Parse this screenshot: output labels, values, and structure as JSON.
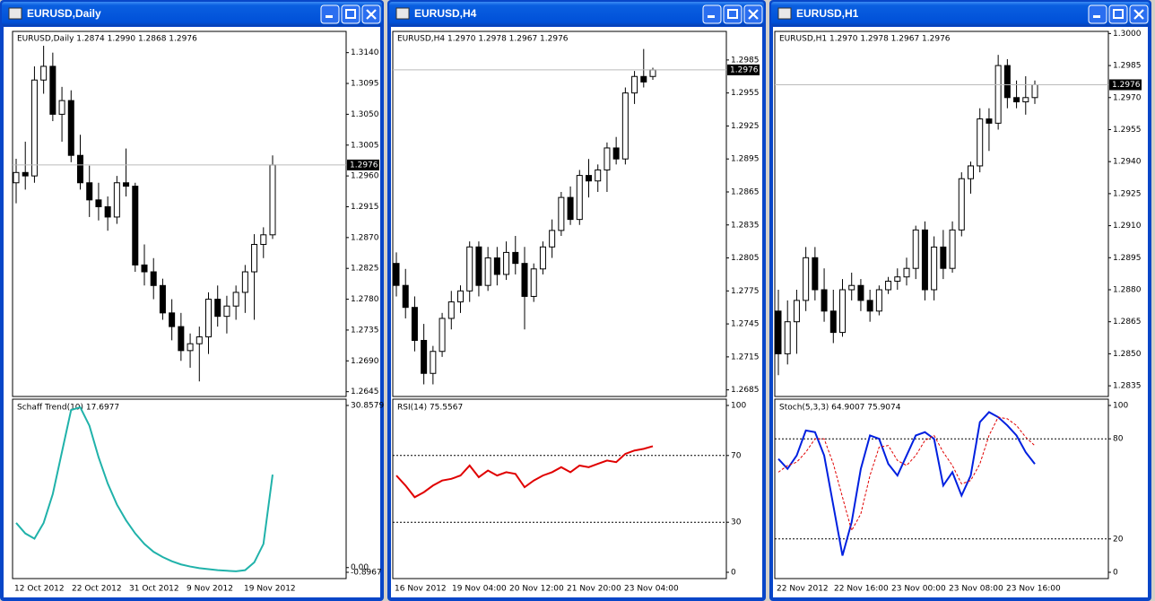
{
  "chart_data": [
    {
      "type": "candlestick",
      "title": "EURUSD,Daily",
      "header": "EURUSD,Daily  1.2874 1.2990 1.2868 1.2976",
      "candles": [
        [
          1.295,
          1.2985,
          1.292,
          1.2965
        ],
        [
          1.2965,
          1.301,
          1.294,
          1.296
        ],
        [
          1.296,
          1.312,
          1.295,
          1.31
        ],
        [
          1.31,
          1.315,
          1.308,
          1.312
        ],
        [
          1.312,
          1.314,
          1.304,
          1.305
        ],
        [
          1.305,
          1.309,
          1.301,
          1.307
        ],
        [
          1.307,
          1.3085,
          1.298,
          1.299
        ],
        [
          1.299,
          1.302,
          1.294,
          1.295
        ],
        [
          1.295,
          1.2975,
          1.29,
          1.2925
        ],
        [
          1.2925,
          1.295,
          1.2895,
          1.2915
        ],
        [
          1.2915,
          1.293,
          1.288,
          1.29
        ],
        [
          1.29,
          1.296,
          1.289,
          1.295
        ],
        [
          1.295,
          1.3,
          1.293,
          1.2945
        ],
        [
          1.2945,
          1.295,
          1.282,
          1.283
        ],
        [
          1.283,
          1.286,
          1.28,
          1.282
        ],
        [
          1.282,
          1.284,
          1.278,
          1.28
        ],
        [
          1.28,
          1.281,
          1.275,
          1.276
        ],
        [
          1.276,
          1.278,
          1.272,
          1.274
        ],
        [
          1.274,
          1.276,
          1.269,
          1.2705
        ],
        [
          1.2705,
          1.273,
          1.268,
          1.2715
        ],
        [
          1.2715,
          1.274,
          1.266,
          1.2725
        ],
        [
          1.2725,
          1.279,
          1.27,
          1.278
        ],
        [
          1.278,
          1.28,
          1.274,
          1.2755
        ],
        [
          1.2755,
          1.2785,
          1.273,
          1.277
        ],
        [
          1.277,
          1.28,
          1.275,
          1.279
        ],
        [
          1.279,
          1.283,
          1.276,
          1.282
        ],
        [
          1.282,
          1.2875,
          1.275,
          1.286
        ],
        [
          1.286,
          1.2885,
          1.284,
          1.2874
        ],
        [
          1.2874,
          1.299,
          1.2868,
          1.2976
        ]
      ],
      "ylim": [
        1.2638,
        1.3171
      ],
      "yticks": [
        {
          "value": 1.314,
          "label": "1.3140"
        },
        {
          "value": 1.3095,
          "label": "1.3095"
        },
        {
          "value": 1.305,
          "label": "1.3050"
        },
        {
          "value": 1.3005,
          "label": "1.3005"
        },
        {
          "value": 1.296,
          "label": "1.2960"
        },
        {
          "value": 1.2915,
          "label": "1.2915"
        },
        {
          "value": 1.287,
          "label": "1.2870"
        },
        {
          "value": 1.2825,
          "label": "1.2825"
        },
        {
          "value": 1.278,
          "label": "1.2780"
        },
        {
          "value": 1.2735,
          "label": "1.2735"
        },
        {
          "value": 1.269,
          "label": "1.2690"
        },
        {
          "value": 1.2645,
          "label": "1.2645"
        }
      ],
      "current": {
        "value": 1.2976,
        "label": "1.2976"
      },
      "x_labels": [
        "12 Oct 2012",
        "22 Oct 2012",
        "31 Oct 2012",
        "9 Nov 2012",
        "19 Nov 2012"
      ],
      "indicator": {
        "type": "line",
        "label": "Schaff Trend(10) 17.6977",
        "ylim": [
          -0.8967,
          30.8579
        ],
        "yticks": [
          {
            "value": 30.8579,
            "label": "30.8579"
          },
          {
            "value": 0,
            "label": "0.00"
          },
          {
            "value": -0.8967,
            "label": "-0.8967"
          }
        ],
        "levels": [],
        "series": [
          {
            "color": "#20b2aa",
            "style": "solid",
            "values": [
              8.5,
              6.5,
              5.5,
              8.5,
              14,
              22,
              30,
              30.5,
              27,
              21,
              16,
              12,
              9,
              6.5,
              4.5,
              3,
              2,
              1.2,
              0.6,
              0.2,
              -0.1,
              -0.3,
              -0.5,
              -0.6,
              -0.7,
              -0.5,
              1,
              4.5,
              17.6977
            ]
          }
        ]
      }
    },
    {
      "type": "candlestick",
      "title": "EURUSD,H4",
      "header": "EURUSD,H4  1.2970 1.2978 1.2967 1.2976",
      "candles": [
        [
          1.28,
          1.281,
          1.277,
          1.278
        ],
        [
          1.278,
          1.2795,
          1.275,
          1.276
        ],
        [
          1.276,
          1.277,
          1.272,
          1.273
        ],
        [
          1.273,
          1.2745,
          1.269,
          1.27
        ],
        [
          1.27,
          1.2725,
          1.269,
          1.272
        ],
        [
          1.272,
          1.2755,
          1.2715,
          1.275
        ],
        [
          1.275,
          1.2775,
          1.274,
          1.2765
        ],
        [
          1.2765,
          1.278,
          1.2755,
          1.2775
        ],
        [
          1.2775,
          1.282,
          1.2765,
          1.2815
        ],
        [
          1.2815,
          1.282,
          1.277,
          1.278
        ],
        [
          1.278,
          1.2815,
          1.2775,
          1.2805
        ],
        [
          1.2805,
          1.2815,
          1.278,
          1.279
        ],
        [
          1.279,
          1.282,
          1.2785,
          1.281
        ],
        [
          1.281,
          1.2825,
          1.279,
          1.28
        ],
        [
          1.28,
          1.2815,
          1.274,
          1.277
        ],
        [
          1.277,
          1.28,
          1.2765,
          1.2795
        ],
        [
          1.2795,
          1.282,
          1.279,
          1.2815
        ],
        [
          1.2815,
          1.284,
          1.2805,
          1.283
        ],
        [
          1.283,
          1.2865,
          1.2825,
          1.286
        ],
        [
          1.286,
          1.287,
          1.2835,
          1.284
        ],
        [
          1.284,
          1.2885,
          1.2835,
          1.288
        ],
        [
          1.288,
          1.2895,
          1.286,
          1.2875
        ],
        [
          1.2875,
          1.289,
          1.2865,
          1.2885
        ],
        [
          1.2885,
          1.291,
          1.2865,
          1.2905
        ],
        [
          1.2905,
          1.2915,
          1.289,
          1.2895
        ],
        [
          1.2895,
          1.296,
          1.289,
          1.2955
        ],
        [
          1.2955,
          1.2975,
          1.2945,
          1.297
        ],
        [
          1.297,
          1.2995,
          1.296,
          1.2965
        ],
        [
          1.297,
          1.2978,
          1.2967,
          1.2976
        ]
      ],
      "ylim": [
        1.2679,
        1.3011
      ],
      "yticks": [
        {
          "value": 1.2985,
          "label": "1.2985"
        },
        {
          "value": 1.2955,
          "label": "1.2955"
        },
        {
          "value": 1.2925,
          "label": "1.2925"
        },
        {
          "value": 1.2895,
          "label": "1.2895"
        },
        {
          "value": 1.2865,
          "label": "1.2865"
        },
        {
          "value": 1.2835,
          "label": "1.2835"
        },
        {
          "value": 1.2805,
          "label": "1.2805"
        },
        {
          "value": 1.2775,
          "label": "1.2775"
        },
        {
          "value": 1.2745,
          "label": "1.2745"
        },
        {
          "value": 1.2715,
          "label": "1.2715"
        },
        {
          "value": 1.2685,
          "label": "1.2685"
        }
      ],
      "current": {
        "value": 1.2976,
        "label": "1.2976"
      },
      "x_labels": [
        "16 Nov 2012",
        "19 Nov 04:00",
        "20 Nov 12:00",
        "21 Nov 20:00",
        "23 Nov 04:00"
      ],
      "indicator": {
        "type": "line",
        "label": "RSI(14) 75.5567",
        "ylim": [
          0,
          100
        ],
        "yticks": [
          100,
          70,
          30,
          0
        ],
        "levels": [
          70,
          30
        ],
        "series": [
          {
            "color": "#e00000",
            "style": "solid",
            "values": [
              58,
              52,
              45,
              48,
              52,
              55,
              56,
              58,
              64,
              57,
              61,
              58,
              60,
              59,
              51,
              55,
              58,
              60,
              63,
              60,
              64,
              63,
              65,
              67,
              66,
              71,
              73,
              74,
              75.5567
            ]
          }
        ]
      }
    },
    {
      "type": "candlestick",
      "title": "EURUSD,H1",
      "header": "EURUSD,H1  1.2970 1.2978 1.2967 1.2976",
      "candles": [
        [
          1.287,
          1.288,
          1.284,
          1.285
        ],
        [
          1.285,
          1.2875,
          1.2845,
          1.2865
        ],
        [
          1.2865,
          1.288,
          1.285,
          1.2875
        ],
        [
          1.2875,
          1.29,
          1.287,
          1.2895
        ],
        [
          1.2895,
          1.29,
          1.2875,
          1.288
        ],
        [
          1.288,
          1.289,
          1.2865,
          1.287
        ],
        [
          1.287,
          1.288,
          1.2855,
          1.286
        ],
        [
          1.286,
          1.2885,
          1.2858,
          1.288
        ],
        [
          1.288,
          1.2888,
          1.2875,
          1.2882
        ],
        [
          1.2882,
          1.2885,
          1.287,
          1.2875
        ],
        [
          1.2875,
          1.288,
          1.2865,
          1.287
        ],
        [
          1.287,
          1.2882,
          1.2868,
          1.288
        ],
        [
          1.288,
          1.2886,
          1.2878,
          1.2884
        ],
        [
          1.2884,
          1.289,
          1.288,
          1.2886
        ],
        [
          1.2886,
          1.2895,
          1.2882,
          1.289
        ],
        [
          1.289,
          1.291,
          1.2885,
          1.2908
        ],
        [
          1.2908,
          1.2912,
          1.2875,
          1.288
        ],
        [
          1.288,
          1.2905,
          1.2875,
          1.29
        ],
        [
          1.29,
          1.2908,
          1.2885,
          1.289
        ],
        [
          1.289,
          1.2912,
          1.2888,
          1.2908
        ],
        [
          1.2908,
          1.2935,
          1.2905,
          1.2932
        ],
        [
          1.2932,
          1.294,
          1.2925,
          1.2938
        ],
        [
          1.2938,
          1.2965,
          1.2935,
          1.296
        ],
        [
          1.296,
          1.2965,
          1.2945,
          1.2958
        ],
        [
          1.2958,
          1.299,
          1.2955,
          1.2985
        ],
        [
          1.2985,
          1.2988,
          1.2965,
          1.297
        ],
        [
          1.297,
          1.2978,
          1.2965,
          1.2968
        ],
        [
          1.2968,
          1.298,
          1.2962,
          1.297
        ],
        [
          1.297,
          1.2978,
          1.2967,
          1.2976
        ]
      ],
      "ylim": [
        1.283,
        1.3001
      ],
      "yticks": [
        {
          "value": 1.3,
          "label": "1.3000"
        },
        {
          "value": 1.2985,
          "label": "1.2985"
        },
        {
          "value": 1.297,
          "label": "1.2970"
        },
        {
          "value": 1.2955,
          "label": "1.2955"
        },
        {
          "value": 1.294,
          "label": "1.2940"
        },
        {
          "value": 1.2925,
          "label": "1.2925"
        },
        {
          "value": 1.291,
          "label": "1.2910"
        },
        {
          "value": 1.2895,
          "label": "1.2895"
        },
        {
          "value": 1.288,
          "label": "1.2880"
        },
        {
          "value": 1.2865,
          "label": "1.2865"
        },
        {
          "value": 1.285,
          "label": "1.2850"
        },
        {
          "value": 1.2835,
          "label": "1.2835"
        }
      ],
      "current": {
        "value": 1.2976,
        "label": "1.2976"
      },
      "x_labels": [
        "22 Nov 2012",
        "22 Nov 16:00",
        "23 Nov 00:00",
        "23 Nov 08:00",
        "23 Nov 16:00"
      ],
      "indicator": {
        "type": "line",
        "label": "Stoch(5,3,3) 64.9007 75.9074",
        "ylim": [
          0,
          100
        ],
        "yticks": [
          100,
          80,
          20,
          0
        ],
        "levels": [
          80,
          20
        ],
        "series": [
          {
            "color": "#0020e0",
            "style": "solid",
            "values": [
              68,
              62,
              70,
              85,
              84,
              70,
              40,
              10,
              30,
              62,
              82,
              80,
              65,
              58,
              70,
              82,
              84,
              80,
              52,
              60,
              46,
              58,
              90,
              96,
              93,
              88,
              82,
              72,
              64.9007
            ]
          },
          {
            "color": "#e00000",
            "style": "dashed",
            "values": [
              60,
              64,
              66,
              72,
              80,
              80,
              65,
              45,
              25,
              35,
              58,
              75,
              76,
              67,
              64,
              70,
              79,
              82,
              72,
              64,
              53,
              55,
              65,
              82,
              93,
              92,
              88,
              81,
              75.9074
            ]
          }
        ]
      }
    }
  ]
}
